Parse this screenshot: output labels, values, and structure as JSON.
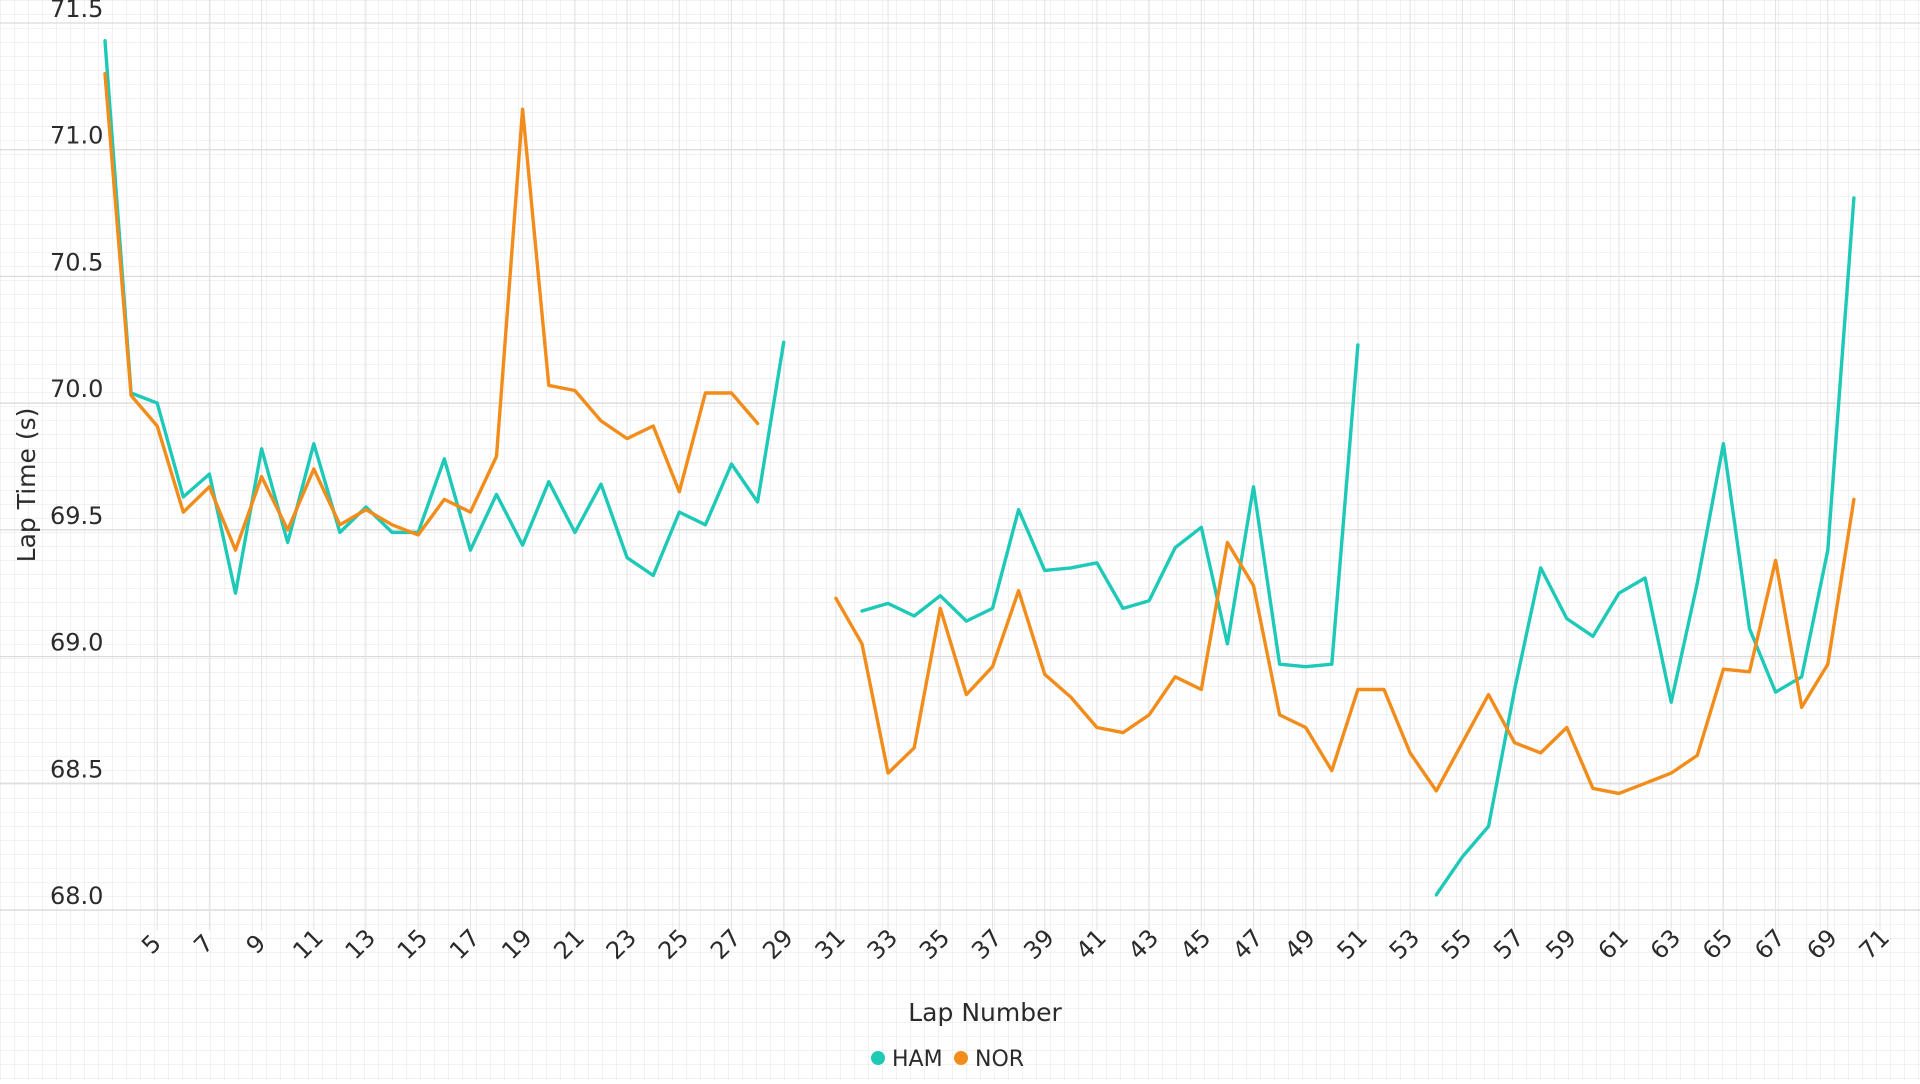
{
  "chart_data": {
    "type": "line",
    "title": "",
    "xlabel": "Lap Number",
    "ylabel": "Lap Time (s)",
    "xlim": [
      3,
      71
    ],
    "ylim": [
      68,
      71.5
    ],
    "grid": true,
    "legend_position": "bottom-center",
    "y_ticks": [
      "68.0",
      "68.5",
      "69.0",
      "69.5",
      "70.0",
      "70.5",
      "71.0",
      "71.5"
    ],
    "x_ticks": [
      5,
      7,
      9,
      11,
      13,
      15,
      17,
      19,
      21,
      23,
      25,
      27,
      29,
      31,
      33,
      35,
      37,
      39,
      41,
      43,
      45,
      47,
      49,
      51,
      53,
      55,
      57,
      59,
      61,
      63,
      65,
      67,
      69,
      71
    ],
    "series": [
      {
        "name": "HAM",
        "color": "#1ec9b7",
        "points": [
          [
            3,
            71.43
          ],
          [
            4,
            70.04
          ],
          [
            5,
            70.0
          ],
          [
            6,
            69.63
          ],
          [
            7,
            69.72
          ],
          [
            8,
            69.25
          ],
          [
            9,
            69.82
          ],
          [
            10,
            69.45
          ],
          [
            11,
            69.84
          ],
          [
            12,
            69.49
          ],
          [
            13,
            69.59
          ],
          [
            14,
            69.49
          ],
          [
            15,
            69.49
          ],
          [
            16,
            69.78
          ],
          [
            17,
            69.42
          ],
          [
            18,
            69.64
          ],
          [
            19,
            69.44
          ],
          [
            20,
            69.69
          ],
          [
            21,
            69.49
          ],
          [
            22,
            69.68
          ],
          [
            23,
            69.39
          ],
          [
            24,
            69.32
          ],
          [
            25,
            69.57
          ],
          [
            26,
            69.52
          ],
          [
            27,
            69.76
          ],
          [
            28,
            69.61
          ],
          [
            29,
            70.24
          ],
          null,
          [
            32,
            69.18
          ],
          [
            33,
            69.21
          ],
          [
            34,
            69.16
          ],
          [
            35,
            69.24
          ],
          [
            36,
            69.14
          ],
          [
            37,
            69.19
          ],
          [
            38,
            69.58
          ],
          [
            39,
            69.34
          ],
          [
            40,
            69.35
          ],
          [
            41,
            69.37
          ],
          [
            42,
            69.19
          ],
          [
            43,
            69.22
          ],
          [
            44,
            69.43
          ],
          [
            45,
            69.51
          ],
          [
            46,
            69.05
          ],
          [
            47,
            69.67
          ],
          [
            48,
            68.97
          ],
          [
            49,
            68.96
          ],
          [
            50,
            68.97
          ],
          [
            51,
            70.23
          ],
          null,
          [
            54,
            68.06
          ],
          [
            55,
            68.21
          ],
          [
            56,
            68.33
          ],
          [
            57,
            68.87
          ],
          [
            58,
            69.35
          ],
          [
            59,
            69.15
          ],
          [
            60,
            69.08
          ],
          [
            61,
            69.25
          ],
          [
            62,
            69.31
          ],
          [
            63,
            68.82
          ],
          [
            64,
            69.29
          ],
          [
            65,
            69.84
          ],
          [
            66,
            69.11
          ],
          [
            67,
            68.86
          ],
          [
            68,
            68.92
          ],
          [
            69,
            69.42
          ],
          [
            70,
            70.81
          ]
        ]
      },
      {
        "name": "NOR",
        "color": "#f28c1b",
        "points": [
          [
            3,
            71.3
          ],
          [
            4,
            70.03
          ],
          [
            5,
            69.91
          ],
          [
            6,
            69.57
          ],
          [
            7,
            69.67
          ],
          [
            8,
            69.42
          ],
          [
            9,
            69.71
          ],
          [
            10,
            69.5
          ],
          [
            11,
            69.74
          ],
          [
            12,
            69.52
          ],
          [
            13,
            69.58
          ],
          [
            14,
            69.52
          ],
          [
            15,
            69.48
          ],
          [
            16,
            69.62
          ],
          [
            17,
            69.57
          ],
          [
            18,
            69.79
          ],
          [
            19,
            71.16
          ],
          [
            20,
            70.07
          ],
          [
            21,
            70.05
          ],
          [
            22,
            69.93
          ],
          [
            23,
            69.86
          ],
          [
            24,
            69.91
          ],
          [
            25,
            69.65
          ],
          [
            26,
            70.04
          ],
          [
            27,
            70.04
          ],
          [
            28,
            69.92
          ],
          null,
          [
            31,
            69.23
          ],
          [
            32,
            69.05
          ],
          [
            33,
            68.54
          ],
          [
            34,
            68.64
          ],
          [
            35,
            69.19
          ],
          [
            36,
            68.85
          ],
          [
            37,
            68.96
          ],
          [
            38,
            69.26
          ],
          [
            39,
            68.93
          ],
          [
            40,
            68.84
          ],
          [
            41,
            68.72
          ],
          [
            42,
            68.7
          ],
          [
            43,
            68.77
          ],
          [
            44,
            68.92
          ],
          [
            45,
            68.87
          ],
          [
            46,
            69.45
          ],
          [
            47,
            69.28
          ],
          [
            48,
            68.77
          ],
          [
            49,
            68.72
          ],
          [
            50,
            68.55
          ],
          [
            51,
            68.87
          ],
          [
            52,
            68.87
          ],
          [
            53,
            68.62
          ],
          [
            54,
            68.47
          ],
          [
            55,
            68.66
          ],
          [
            56,
            68.85
          ],
          [
            57,
            68.66
          ],
          [
            58,
            68.62
          ],
          [
            59,
            68.72
          ],
          [
            60,
            68.48
          ],
          [
            61,
            68.46
          ],
          [
            62,
            68.5
          ],
          [
            63,
            68.54
          ],
          [
            64,
            68.61
          ],
          [
            65,
            68.95
          ],
          [
            66,
            68.94
          ],
          [
            67,
            69.38
          ],
          [
            68,
            68.8
          ],
          [
            69,
            68.97
          ],
          [
            70,
            69.62
          ]
        ]
      }
    ]
  }
}
